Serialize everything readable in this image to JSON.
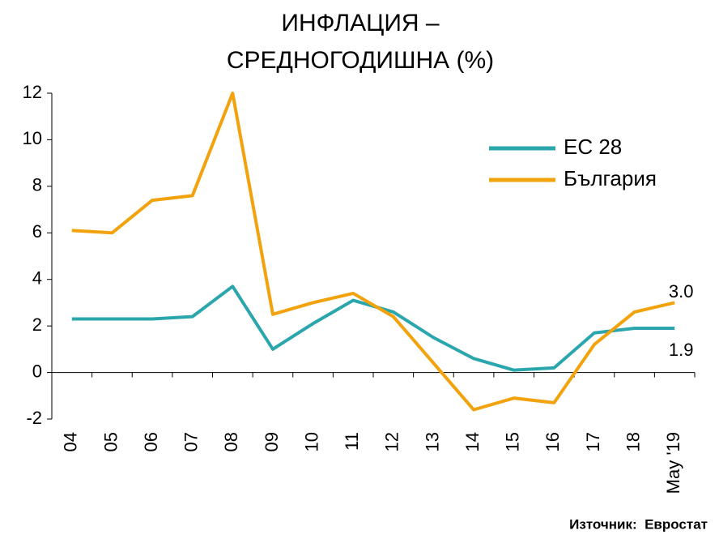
{
  "chart_data": {
    "type": "line",
    "title": [
      "ИНФЛАЦИЯ –",
      "СРЕДНОГОДИШНА (%)"
    ],
    "categories": [
      "04",
      "05",
      "06",
      "07",
      "08",
      "09",
      "10",
      "11",
      "12",
      "13",
      "14",
      "15",
      "16",
      "17",
      "18",
      "May '19"
    ],
    "series": [
      {
        "name": "ЕС 28",
        "color": "#2ba6ad",
        "values": [
          2.3,
          2.3,
          2.3,
          2.4,
          3.7,
          1.0,
          2.1,
          3.1,
          2.6,
          1.5,
          0.6,
          0.1,
          0.2,
          1.7,
          1.9,
          1.9
        ],
        "value_labels": [
          null,
          null,
          null,
          null,
          null,
          null,
          null,
          null,
          null,
          null,
          null,
          null,
          null,
          null,
          null,
          "1.9"
        ]
      },
      {
        "name": "България",
        "color": "#f2a20d",
        "values": [
          6.1,
          6.0,
          7.4,
          7.6,
          12.0,
          2.5,
          3.0,
          3.4,
          2.4,
          0.4,
          -1.6,
          -1.1,
          -1.3,
          1.2,
          2.6,
          3.0
        ],
        "value_labels": [
          null,
          null,
          null,
          null,
          null,
          null,
          null,
          null,
          null,
          null,
          null,
          null,
          null,
          null,
          null,
          "3.0"
        ]
      }
    ],
    "ylim": [
      -2,
      12
    ],
    "yticks": [
      -2,
      0,
      2,
      4,
      6,
      8,
      10,
      12
    ],
    "legend": "upper right",
    "source": "Източник:  Евростат"
  }
}
